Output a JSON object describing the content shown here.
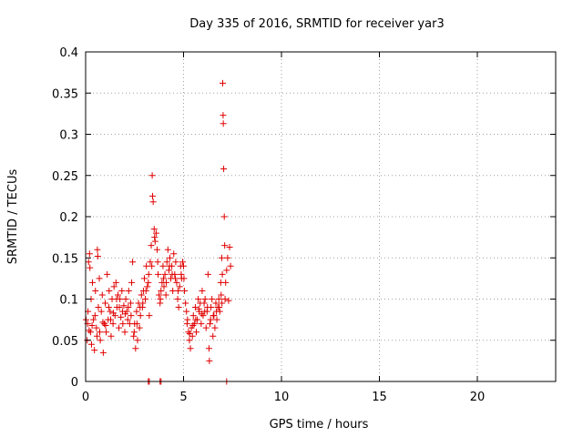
{
  "chart_data": {
    "type": "scatter",
    "title": "Day 335 of 2016, SRMTID for receiver yar3",
    "xlabel": "GPS time / hours",
    "ylabel": "SRMTID / TECUs",
    "xlim": [
      0,
      24
    ],
    "ylim": [
      0,
      0.4
    ],
    "x_ticks": [
      0,
      5,
      10,
      15,
      20
    ],
    "y_ticks": [
      0,
      0.05,
      0.1,
      0.15,
      0.2,
      0.25,
      0.3,
      0.35,
      0.4
    ],
    "x_tick_labels": [
      "0",
      "5",
      "10",
      "15",
      "20"
    ],
    "y_tick_labels": [
      "0",
      "0.05",
      "0.1",
      "0.15",
      "0.2",
      "0.25",
      "0.3",
      "0.35",
      "0.4"
    ],
    "grid": true,
    "marker": "+",
    "series_color": "#e00000",
    "series": [
      {
        "name": "SRMTID",
        "points": [
          [
            0.02,
            0.075
          ],
          [
            0.08,
            0.05
          ],
          [
            0.12,
            0.085
          ],
          [
            0.15,
            0.145
          ],
          [
            0.2,
            0.155
          ],
          [
            0.22,
            0.138
          ],
          [
            0.25,
            0.06
          ],
          [
            0.28,
            0.1
          ],
          [
            0.3,
            0.045
          ],
          [
            0.35,
            0.12
          ],
          [
            0.4,
            0.075
          ],
          [
            0.45,
            0.038
          ],
          [
            0.5,
            0.11
          ],
          [
            0.55,
            0.065
          ],
          [
            0.6,
            0.16
          ],
          [
            0.62,
            0.152
          ],
          [
            0.65,
            0.09
          ],
          [
            0.7,
            0.125
          ],
          [
            0.75,
            0.05
          ],
          [
            0.8,
            0.085
          ],
          [
            0.85,
            0.105
          ],
          [
            0.9,
            0.035
          ],
          [
            0.95,
            0.07
          ],
          [
            1.0,
            0.095
          ],
          [
            1.05,
            0.06
          ],
          [
            1.1,
            0.13
          ],
          [
            1.15,
            0.075
          ],
          [
            1.2,
            0.11
          ],
          [
            1.25,
            0.085
          ],
          [
            1.3,
            0.055
          ],
          [
            1.35,
            0.1
          ],
          [
            1.4,
            0.07
          ],
          [
            1.45,
            0.115
          ],
          [
            1.5,
            0.08
          ],
          [
            1.55,
            0.12
          ],
          [
            1.6,
            0.09
          ],
          [
            1.65,
            0.105
          ],
          [
            1.7,
            0.065
          ],
          [
            1.75,
            0.1
          ],
          [
            1.8,
            0.078
          ],
          [
            1.85,
            0.11
          ],
          [
            1.9,
            0.07
          ],
          [
            1.95,
            0.092
          ],
          [
            2.0,
            0.06
          ],
          [
            2.05,
            0.1
          ],
          [
            2.1,
            0.085
          ],
          [
            2.15,
            0.075
          ],
          [
            2.2,
            0.11
          ],
          [
            2.25,
            0.07
          ],
          [
            2.3,
            0.095
          ],
          [
            2.35,
            0.12
          ],
          [
            2.4,
            0.145
          ],
          [
            2.45,
            0.055
          ],
          [
            2.5,
            0.07
          ],
          [
            2.55,
            0.04
          ],
          [
            2.6,
            0.085
          ],
          [
            2.65,
            0.05
          ],
          [
            2.7,
            0.095
          ],
          [
            2.75,
            0.065
          ],
          [
            2.8,
            0.08
          ],
          [
            2.85,
            0.105
          ],
          [
            2.9,
            0.09
          ],
          [
            2.95,
            0.11
          ],
          [
            3.0,
            0.125
          ],
          [
            3.05,
            0.1
          ],
          [
            3.1,
            0.14
          ],
          [
            3.15,
            0.115
          ],
          [
            3.2,
            0.12
          ],
          [
            3.25,
            0.08
          ],
          [
            3.3,
            0.145
          ],
          [
            3.35,
            0.165
          ],
          [
            3.4,
            0.25
          ],
          [
            3.42,
            0.225
          ],
          [
            3.45,
            0.218
          ],
          [
            3.5,
            0.185
          ],
          [
            3.55,
            0.17
          ],
          [
            3.6,
            0.18
          ],
          [
            3.65,
            0.16
          ],
          [
            3.7,
            0.13
          ],
          [
            3.75,
            0.105
          ],
          [
            3.8,
            0.095
          ],
          [
            3.85,
            0.11
          ],
          [
            3.9,
            0.12
          ],
          [
            3.95,
            0.14
          ],
          [
            4.0,
            0.115
          ],
          [
            4.05,
            0.13
          ],
          [
            4.1,
            0.105
          ],
          [
            4.15,
            0.145
          ],
          [
            4.2,
            0.16
          ],
          [
            4.25,
            0.135
          ],
          [
            4.3,
            0.15
          ],
          [
            4.35,
            0.125
          ],
          [
            4.4,
            0.14
          ],
          [
            4.45,
            0.11
          ],
          [
            4.5,
            0.155
          ],
          [
            4.55,
            0.13
          ],
          [
            4.6,
            0.145
          ],
          [
            4.65,
            0.12
          ],
          [
            4.7,
            0.1
          ],
          [
            4.75,
            0.09
          ],
          [
            4.8,
            0.115
          ],
          [
            4.85,
            0.14
          ],
          [
            4.9,
            0.125
          ],
          [
            4.95,
            0.145
          ],
          [
            5.0,
            0.14
          ],
          [
            5.05,
            0.11
          ],
          [
            5.1,
            0.095
          ],
          [
            5.15,
            0.085
          ],
          [
            5.2,
            0.075
          ],
          [
            5.25,
            0.06
          ],
          [
            5.3,
            0.05
          ],
          [
            5.35,
            0.04
          ],
          [
            5.4,
            0.065
          ],
          [
            5.45,
            0.055
          ],
          [
            5.5,
            0.08
          ],
          [
            5.55,
            0.07
          ],
          [
            5.6,
            0.09
          ],
          [
            5.65,
            0.06
          ],
          [
            5.7,
            0.075
          ],
          [
            5.75,
            0.1
          ],
          [
            5.8,
            0.085
          ],
          [
            5.85,
            0.095
          ],
          [
            5.9,
            0.07
          ],
          [
            5.95,
            0.11
          ],
          [
            6.0,
            0.08
          ],
          [
            6.05,
            0.095
          ],
          [
            6.1,
            0.1
          ],
          [
            6.15,
            0.065
          ],
          [
            6.2,
            0.085
          ],
          [
            6.25,
            0.13
          ],
          [
            6.3,
            0.04
          ],
          [
            6.32,
            0.025
          ],
          [
            6.35,
            0.07
          ],
          [
            6.4,
            0.09
          ],
          [
            6.45,
            0.1
          ],
          [
            6.5,
            0.055
          ],
          [
            6.55,
            0.08
          ],
          [
            6.6,
            0.065
          ],
          [
            6.65,
            0.095
          ],
          [
            6.7,
            0.075
          ],
          [
            6.75,
            0.09
          ],
          [
            6.8,
            0.1
          ],
          [
            6.85,
            0.085
          ],
          [
            6.9,
            0.12
          ],
          [
            6.92,
            0.105
          ],
          [
            6.95,
            0.15
          ],
          [
            6.98,
            0.13
          ],
          [
            7.0,
            0.362
          ],
          [
            7.02,
            0.323
          ],
          [
            7.03,
            0.313
          ],
          [
            7.05,
            0.258
          ],
          [
            7.08,
            0.2
          ],
          [
            7.1,
            0.165
          ],
          [
            7.15,
            0.12
          ],
          [
            7.2,
            0.135
          ],
          [
            7.25,
            0.15
          ],
          [
            7.3,
            0.098
          ],
          [
            7.35,
            0.163
          ],
          [
            7.4,
            0.14
          ],
          [
            0.1,
            0.07
          ],
          [
            0.18,
            0.062
          ],
          [
            0.33,
            0.068
          ],
          [
            0.48,
            0.08
          ],
          [
            0.58,
            0.055
          ],
          [
            0.72,
            0.06
          ],
          [
            0.88,
            0.072
          ],
          [
            1.02,
            0.068
          ],
          [
            1.18,
            0.09
          ],
          [
            1.28,
            0.075
          ],
          [
            1.42,
            0.083
          ],
          [
            1.58,
            0.1
          ],
          [
            1.72,
            0.09
          ],
          [
            1.88,
            0.085
          ],
          [
            2.02,
            0.082
          ],
          [
            2.18,
            0.09
          ],
          [
            2.32,
            0.08
          ],
          [
            2.48,
            0.06
          ],
          [
            2.62,
            0.07
          ],
          [
            2.78,
            0.09
          ],
          [
            2.92,
            0.095
          ],
          [
            3.08,
            0.11
          ],
          [
            3.22,
            0.13
          ],
          [
            3.38,
            0.14
          ],
          [
            3.52,
            0.175
          ],
          [
            3.68,
            0.145
          ],
          [
            3.82,
            0.1
          ],
          [
            3.98,
            0.125
          ],
          [
            4.12,
            0.12
          ],
          [
            4.28,
            0.14
          ],
          [
            4.42,
            0.13
          ],
          [
            4.58,
            0.125
          ],
          [
            4.72,
            0.11
          ],
          [
            4.88,
            0.13
          ],
          [
            5.02,
            0.125
          ],
          [
            5.18,
            0.07
          ],
          [
            5.32,
            0.058
          ],
          [
            5.48,
            0.068
          ],
          [
            5.62,
            0.075
          ],
          [
            5.78,
            0.088
          ],
          [
            5.92,
            0.082
          ],
          [
            6.08,
            0.085
          ],
          [
            6.22,
            0.09
          ],
          [
            6.38,
            0.075
          ],
          [
            6.52,
            0.08
          ],
          [
            6.68,
            0.085
          ],
          [
            6.82,
            0.09
          ],
          [
            6.96,
            0.095
          ],
          [
            7.12,
            0.1
          ]
        ],
        "zero_points": [
          3.2,
          3.25,
          3.8,
          3.85,
          7.2
        ]
      }
    ]
  }
}
